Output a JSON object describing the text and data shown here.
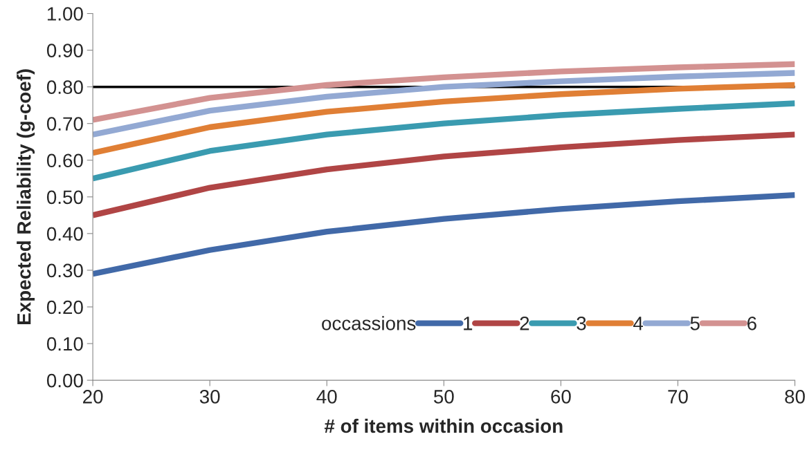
{
  "chart_data": {
    "type": "line",
    "xlabel": "# of items within occasion",
    "ylabel": "Expected Reliability (g-coef)",
    "legend_title": "occassions",
    "x": [
      20,
      30,
      40,
      50,
      60,
      70,
      80
    ],
    "series": [
      {
        "name": "1",
        "color": "#4169a8",
        "values": [
          0.29,
          0.355,
          0.405,
          0.44,
          0.467,
          0.488,
          0.505
        ]
      },
      {
        "name": "2",
        "color": "#b04545",
        "values": [
          0.45,
          0.525,
          0.575,
          0.61,
          0.635,
          0.655,
          0.67
        ]
      },
      {
        "name": "3",
        "color": "#3a9bb0",
        "values": [
          0.55,
          0.625,
          0.67,
          0.7,
          0.723,
          0.74,
          0.755
        ]
      },
      {
        "name": "4",
        "color": "#e07f35",
        "values": [
          0.62,
          0.69,
          0.732,
          0.76,
          0.78,
          0.795,
          0.805
        ]
      },
      {
        "name": "5",
        "color": "#93a9d3",
        "values": [
          0.67,
          0.735,
          0.773,
          0.8,
          0.815,
          0.828,
          0.838
        ]
      },
      {
        "name": "6",
        "color": "#d39291",
        "values": [
          0.71,
          0.77,
          0.805,
          0.826,
          0.842,
          0.853,
          0.862
        ]
      }
    ],
    "ref_lines": [
      {
        "axis": "y",
        "value": 0.8,
        "color": "#000000"
      }
    ],
    "xlim": [
      20,
      80
    ],
    "xticks": [
      20,
      30,
      40,
      50,
      60,
      70,
      80
    ],
    "ylim": [
      0,
      1
    ],
    "yticks": [
      {
        "value": 0,
        "label": "0.00"
      },
      {
        "value": 0.1,
        "label": "0.10"
      },
      {
        "value": 0.2,
        "label": "0.20"
      },
      {
        "value": 0.3,
        "label": "0.30"
      },
      {
        "value": 0.4,
        "label": "0.40"
      },
      {
        "value": 0.5,
        "label": "0.50"
      },
      {
        "value": 0.6,
        "label": "0.60"
      },
      {
        "value": 0.7,
        "label": "0.70"
      },
      {
        "value": 0.8,
        "label": "0.80"
      },
      {
        "value": 0.9,
        "label": "0.90"
      },
      {
        "value": 1.0,
        "label": "1.00"
      }
    ],
    "legend": "bottom right",
    "grid": false,
    "marker": "none",
    "line_style": "solid"
  }
}
